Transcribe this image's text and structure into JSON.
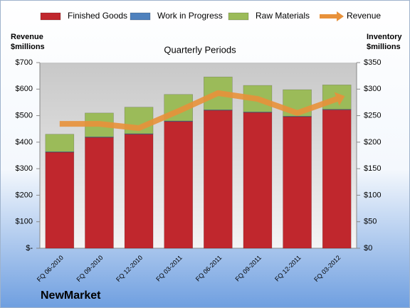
{
  "chart_data": {
    "type": "combo",
    "title": "NewMarket",
    "subtitle": "Quarterly Periods",
    "y_label": "Revenue $millions",
    "y2_label": "Inventory $millions",
    "categories": [
      "FQ 06-2010",
      "FQ 09-2010",
      "FQ 12-2010",
      "FQ 03-2011",
      "FQ 06-2011",
      "FQ 09-2011",
      "FQ 12-2011",
      "FQ 03-2012"
    ],
    "series": [
      {
        "name": "Finished Goods",
        "type": "bar",
        "axis": "y2",
        "color": "#c0272d",
        "values": [
          181,
          209,
          215,
          239,
          260,
          256,
          248,
          261
        ]
      },
      {
        "name": "Work in Progress",
        "type": "bar",
        "axis": "y2",
        "color": "#4f81bd",
        "values": [
          1,
          1,
          1,
          1,
          1,
          1,
          1,
          1
        ]
      },
      {
        "name": "Raw Materials",
        "type": "bar",
        "axis": "y2",
        "color": "#9bbb59",
        "values": [
          33,
          45,
          50,
          50,
          62,
          50,
          50,
          46
        ]
      },
      {
        "name": "Revenue",
        "type": "line",
        "color": "#e8913a",
        "values": [
          469,
          469,
          453,
          517,
          585,
          563,
          510,
          563
        ]
      }
    ],
    "ylim": [
      0,
      700
    ],
    "yticks": [
      {
        "value": 0,
        "label": "$-"
      },
      {
        "value": 100,
        "label": "$100"
      },
      {
        "value": 200,
        "label": "$200"
      },
      {
        "value": 300,
        "label": "$300"
      },
      {
        "value": 400,
        "label": "$400"
      },
      {
        "value": 500,
        "label": "$500"
      },
      {
        "value": 600,
        "label": "$600"
      },
      {
        "value": 700,
        "label": "$700"
      }
    ],
    "y2lim": [
      0,
      350
    ],
    "y2ticks": [
      {
        "value": 0,
        "label": "$0"
      },
      {
        "value": 50,
        "label": "$50"
      },
      {
        "value": 100,
        "label": "$100"
      },
      {
        "value": 150,
        "label": "$150"
      },
      {
        "value": 200,
        "label": "$200"
      },
      {
        "value": 250,
        "label": "$250"
      },
      {
        "value": 300,
        "label": "$300"
      },
      {
        "value": 350,
        "label": "$350"
      }
    ],
    "grid": false,
    "legend": "top"
  }
}
